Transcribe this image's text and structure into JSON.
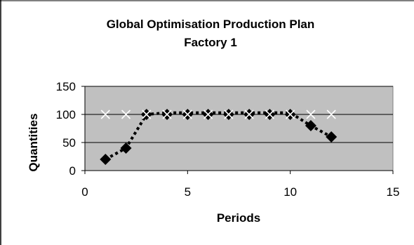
{
  "chart_data": {
    "type": "scatter",
    "title": "Global Optimisation Production Plan",
    "subtitle": "Factory 1",
    "xlabel": "Periods",
    "ylabel": "Quantities",
    "xlim": [
      0,
      15
    ],
    "ylim": [
      0,
      150
    ],
    "x_ticks": [
      "0",
      "5",
      "10",
      "15"
    ],
    "y_ticks": [
      "0",
      "50",
      "100",
      "150"
    ],
    "grid": true,
    "legend": "none",
    "plot_background": "#c0c0c0",
    "series": [
      {
        "marker": "x",
        "line": "none",
        "color": "#ffffff",
        "points": [
          [
            1,
            100
          ],
          [
            2,
            100
          ],
          [
            3,
            100
          ],
          [
            4,
            100
          ],
          [
            5,
            100
          ],
          [
            6,
            100
          ],
          [
            7,
            100
          ],
          [
            8,
            100
          ],
          [
            9,
            100
          ],
          [
            10,
            100
          ],
          [
            11,
            100
          ],
          [
            12,
            100
          ]
        ]
      },
      {
        "marker": "diamond",
        "line": "none",
        "color": "#000000",
        "points": [
          [
            1,
            20
          ],
          [
            2,
            40
          ],
          [
            3,
            100
          ],
          [
            4,
            100
          ],
          [
            5,
            100
          ],
          [
            6,
            100
          ],
          [
            7,
            100
          ],
          [
            8,
            100
          ],
          [
            9,
            100
          ],
          [
            10,
            100
          ],
          [
            11,
            80
          ],
          [
            12,
            60
          ]
        ]
      },
      {
        "marker": "none",
        "line": "dotted",
        "color": "#000000",
        "points": [
          [
            1,
            20
          ],
          [
            2,
            40
          ],
          [
            3,
            100
          ],
          [
            4,
            103
          ],
          [
            5,
            103
          ],
          [
            6,
            103
          ],
          [
            7,
            103
          ],
          [
            8,
            103
          ],
          [
            9,
            103
          ],
          [
            10,
            103
          ],
          [
            11,
            80
          ],
          [
            12,
            60
          ]
        ]
      }
    ]
  }
}
